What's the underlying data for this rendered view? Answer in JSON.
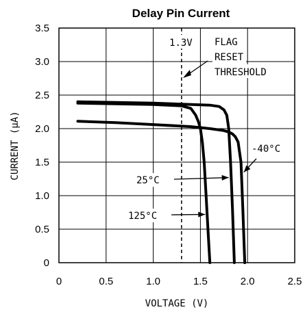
{
  "chart_data": {
    "type": "line",
    "title": "Delay Pin Current",
    "xlabel": "VOLTAGE (V)",
    "ylabel": "CURRENT (μA)",
    "xlim": [
      0,
      2.5
    ],
    "ylim": [
      0,
      3.5
    ],
    "x_ticks": [
      "0",
      "0.5",
      "1.0",
      "1.5",
      "2.0",
      "2.5"
    ],
    "y_ticks": [
      "0",
      "0.5",
      "1.0",
      "1.5",
      "2.0",
      "2.5",
      "3.0",
      "3.5"
    ],
    "grid": true,
    "series": [
      {
        "name": "-40°C",
        "x": [
          0.2,
          0.6,
          1.0,
          1.4,
          1.6,
          1.75,
          1.8,
          1.84,
          1.87,
          1.9,
          1.93,
          1.95,
          1.97
        ],
        "y": [
          2.11,
          2.09,
          2.06,
          2.03,
          2.0,
          1.97,
          1.95,
          1.92,
          1.88,
          1.8,
          1.5,
          0.8,
          0.0
        ]
      },
      {
        "name": "25°C",
        "x": [
          0.2,
          0.6,
          1.0,
          1.4,
          1.6,
          1.7,
          1.75,
          1.78,
          1.8,
          1.82,
          1.84,
          1.86
        ],
        "y": [
          2.4,
          2.39,
          2.38,
          2.36,
          2.35,
          2.33,
          2.28,
          2.2,
          2.0,
          1.5,
          0.8,
          0.0
        ]
      },
      {
        "name": "125°C",
        "x": [
          0.2,
          0.6,
          1.0,
          1.3,
          1.4,
          1.45,
          1.48,
          1.5,
          1.52,
          1.54,
          1.56,
          1.58,
          1.6
        ],
        "y": [
          2.38,
          2.37,
          2.36,
          2.34,
          2.3,
          2.2,
          2.1,
          2.0,
          1.8,
          1.5,
          1.0,
          0.5,
          0.0
        ]
      }
    ],
    "threshold": {
      "x": 1.3,
      "value_label": "1.3V",
      "label_lines": [
        "FLAG",
        "RESET",
        "THRESHOLD"
      ]
    },
    "annotations": [
      {
        "text": "-40°C",
        "target_x": 1.96,
        "target_y": 1.35
      },
      {
        "text": "25°C",
        "target_x": 1.8,
        "target_y": 1.27
      },
      {
        "text": "125°C",
        "target_x": 1.55,
        "target_y": 0.72
      }
    ]
  }
}
